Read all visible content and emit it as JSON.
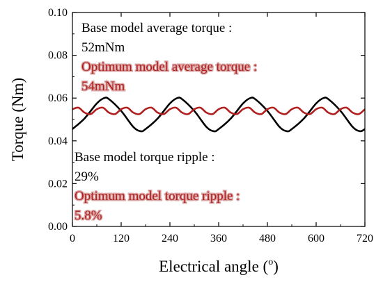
{
  "chart_data": {
    "type": "line",
    "xlabel": "Electrical angle (",
    "xlabel_sup": "o",
    "xlabel_close": ")",
    "ylabel": "Torque (Nm)",
    "xlim": [
      0,
      720
    ],
    "ylim": [
      0,
      0.1
    ],
    "x_ticks": [
      "0",
      "120",
      "240",
      "360",
      "480",
      "600",
      "720"
    ],
    "y_ticks": [
      "0.00",
      "0.02",
      "0.04",
      "0.06",
      "0.08",
      "0.10"
    ],
    "grid": false,
    "series": [
      {
        "color": "#000000",
        "x": [
          0,
          30,
          60,
          78,
          90,
          120,
          150,
          168,
          180,
          210,
          240,
          258,
          270,
          300,
          330,
          348,
          360,
          390,
          420,
          438,
          450,
          480,
          510,
          528,
          540,
          570,
          600,
          618,
          630,
          660,
          690,
          708,
          720
        ],
        "y": [
          0.0455,
          0.0505,
          0.0575,
          0.06,
          0.0595,
          0.054,
          0.0465,
          0.0445,
          0.0455,
          0.0505,
          0.0575,
          0.06,
          0.0595,
          0.054,
          0.0465,
          0.0445,
          0.0455,
          0.0505,
          0.0575,
          0.06,
          0.0595,
          0.054,
          0.0465,
          0.0445,
          0.0455,
          0.0505,
          0.0575,
          0.06,
          0.0595,
          0.054,
          0.0465,
          0.0445,
          0.0455
        ]
      },
      {
        "color": "#b01e1e",
        "x": [
          0,
          15,
          30,
          45,
          60,
          75,
          90,
          105,
          120,
          135,
          150,
          165,
          180,
          195,
          210,
          225,
          240,
          255,
          270,
          285,
          300,
          315,
          330,
          345,
          360,
          375,
          390,
          405,
          420,
          435,
          450,
          465,
          480,
          495,
          510,
          525,
          540,
          555,
          570,
          585,
          600,
          615,
          630,
          645,
          660,
          675,
          690,
          705,
          720
        ],
        "y": [
          0.0548,
          0.0555,
          0.0532,
          0.0525,
          0.0548,
          0.0555,
          0.0532,
          0.0525,
          0.0548,
          0.0555,
          0.0532,
          0.0525,
          0.0548,
          0.0555,
          0.0532,
          0.0525,
          0.0548,
          0.0555,
          0.0532,
          0.0525,
          0.0548,
          0.0555,
          0.0532,
          0.0525,
          0.0548,
          0.0555,
          0.0532,
          0.0525,
          0.0548,
          0.0555,
          0.0532,
          0.0525,
          0.0548,
          0.0555,
          0.0532,
          0.0525,
          0.0548,
          0.0555,
          0.0532,
          0.0525,
          0.0548,
          0.0555,
          0.0532,
          0.0525,
          0.0548,
          0.0555,
          0.0532,
          0.0525,
          0.0548
        ]
      }
    ],
    "annotations": [
      {
        "text": "Base model average torque :",
        "color": "#000000"
      },
      {
        "text": "52mNm",
        "color": "#000000"
      },
      {
        "text": "Optimum model average torque :",
        "color": "#b01e1e"
      },
      {
        "text": "54mNm",
        "color": "#b01e1e"
      },
      {
        "text": "Base model torque ripple :",
        "color": "#000000"
      },
      {
        "text": "29%",
        "color": "#000000"
      },
      {
        "text": "Optimum model torque ripple :",
        "color": "#b01e1e"
      },
      {
        "text": "5.8%",
        "color": "#b01e1e"
      }
    ]
  }
}
